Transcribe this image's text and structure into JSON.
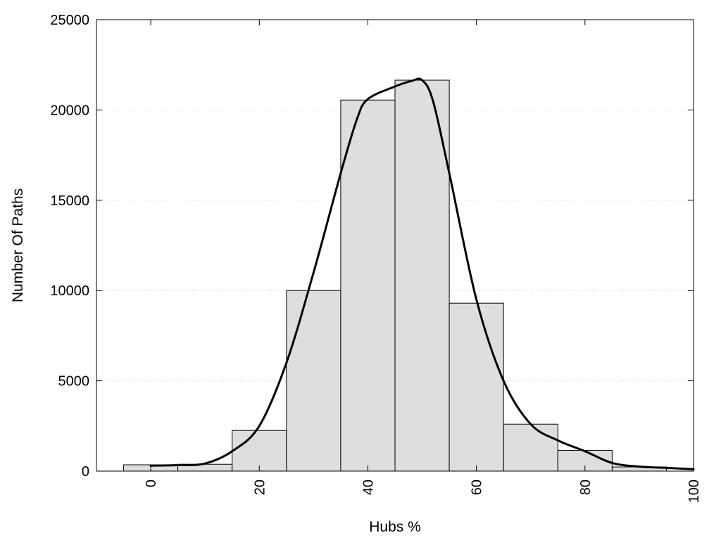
{
  "chart_data": {
    "type": "bar",
    "xlabel": "Hubs %",
    "ylabel": "Number Of Paths",
    "xlim": [
      -10,
      100
    ],
    "ylim": [
      0,
      25000
    ],
    "grid": "horizontal-dotted",
    "xticks": [
      "0",
      "20",
      "40",
      "60",
      "80",
      "100"
    ],
    "xtick_values": [
      0,
      20,
      40,
      60,
      80,
      100
    ],
    "yticks": [
      "0",
      "5000",
      "10000",
      "15000",
      "20000",
      "25000"
    ],
    "ytick_values": [
      0,
      5000,
      10000,
      15000,
      20000,
      25000
    ],
    "bar_width": 10,
    "bars": [
      {
        "x": 0,
        "value": 350
      },
      {
        "x": 10,
        "value": 380
      },
      {
        "x": 20,
        "value": 2250
      },
      {
        "x": 30,
        "value": 10000
      },
      {
        "x": 40,
        "value": 20550
      },
      {
        "x": 50,
        "value": 21650
      },
      {
        "x": 60,
        "value": 9300
      },
      {
        "x": 70,
        "value": 2600
      },
      {
        "x": 80,
        "value": 1150
      },
      {
        "x": 90,
        "value": 230
      }
    ],
    "colors": {
      "bar_fill": "#dedede",
      "bar_stroke": "#000000",
      "curve": "#000000"
    },
    "curve": {
      "x": [
        0,
        5,
        10,
        15,
        20,
        25,
        30,
        35,
        38,
        40,
        45,
        48,
        50,
        52,
        55,
        60,
        65,
        70,
        75,
        80,
        85,
        90,
        95,
        100
      ],
      "y": [
        300,
        330,
        420,
        1100,
        2500,
        6000,
        11000,
        16500,
        19500,
        20600,
        21300,
        21600,
        21650,
        20500,
        16500,
        9500,
        5000,
        2600,
        1700,
        1100,
        450,
        250,
        180,
        100
      ]
    }
  }
}
